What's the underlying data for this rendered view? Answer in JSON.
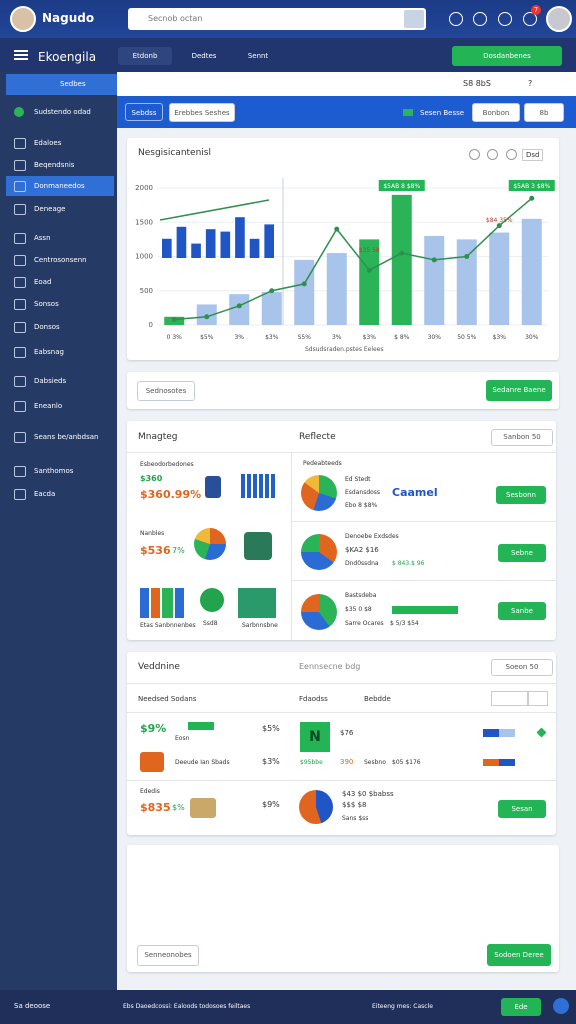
{
  "header": {
    "app_name": "Nagudo",
    "search_placeholder": "Secnob octan",
    "badge": "7"
  },
  "toolbar": {
    "title": "Ekoengila",
    "tabs": [
      "Etdonb",
      "Dedtes",
      "Sennt"
    ],
    "action": "Dosdanbenes"
  },
  "sidebar": {
    "top": "Sedbes",
    "section": "Sudstendo odad",
    "items": [
      "Edaloes",
      "Beqendsnis",
      "Donmaneedos",
      "Deneage",
      "Assn",
      "Centrosonsenn",
      "Eoad",
      "Sonsos",
      "Donsos",
      "Eabsnag",
      "Dabsieds",
      "Eneanlo",
      "Seans be/anbdsan",
      "Santhomos",
      "Eacda"
    ]
  },
  "subbar": {
    "search": "S8 8bS",
    "help": "?",
    "filters": [
      "Sebdss",
      "Erebbes Seshes"
    ],
    "status": "Sesen Besse",
    "buttons": [
      "Bonbon",
      "8b"
    ]
  },
  "main_chart": {
    "title": "Nesgisicantenisl",
    "more": "Dsd",
    "caption": "Sdsudsraden.pstes Eelees",
    "ylim": [
      0,
      2000
    ],
    "yticks": [
      0,
      500,
      1000,
      1500,
      2000
    ],
    "categories": [
      "0 3%",
      "$5%",
      "3%",
      "$3%",
      "S5%",
      "3%",
      "$3%",
      "$ 8%",
      "30%",
      "50 5%",
      "$3%",
      "30%"
    ],
    "bars": {
      "values": [
        120,
        300,
        450,
        480,
        950,
        1050,
        1250,
        1900,
        1300,
        1250,
        1350,
        1550
      ],
      "colors": [
        "#2bb457",
        "#a9c4ea",
        "#a9c4ea",
        "#a9c4ea",
        "#a9c4ea",
        "#a9c4ea",
        "#2bb457",
        "#2bb457",
        "#a9c4ea",
        "#a9c4ea",
        "#a9c4ea",
        "#a9c4ea"
      ]
    },
    "line": {
      "color": "#2f8f4f",
      "values": [
        80,
        120,
        280,
        500,
        600,
        1400,
        800,
        1050,
        950,
        1000,
        1450,
        1850
      ]
    },
    "inset": {
      "color": "#1f55c4",
      "ylim": [
        0,
        100
      ],
      "values": [
        40,
        65,
        30,
        60,
        55,
        85,
        40,
        70
      ]
    },
    "annotations": [
      "$5AB 8 $8%",
      "$5AB 3 $8%",
      "$35 58",
      "$84 35%"
    ]
  },
  "filter_card": {
    "left_button": "Sednosotes",
    "right_button": "Sedanre Baene"
  },
  "summary_card": {
    "left_title": "Mnagteg",
    "right_title": "Reflecte",
    "select": "Sanbon 50",
    "left": [
      {
        "label": "Esbeodorbedones",
        "value": "$360",
        "big": "$360.99%"
      },
      {
        "label": "Nanbles",
        "value": "$536",
        "pct": "7%"
      },
      {
        "labels": [
          "Etas Sanbnnenbes",
          "Ssd8",
          "Sarbnnsbne"
        ]
      }
    ],
    "right": [
      {
        "title": "Pedeabteeds",
        "lines": [
          "Ed Stedt",
          "Esdansdoss",
          "Ebo 8 $8%"
        ],
        "highlight": "Caamel",
        "button": "Sesbonn"
      },
      {
        "lines": [
          "Denoebe Exdsdes",
          "$KA2 $16",
          "Dnd0ssdna",
          "$ 843.$ 96"
        ],
        "button": "Sebne"
      },
      {
        "lines": [
          "Bastsdeba",
          "$35 0 $8",
          "Sarre Ocares",
          "$ 5/3 $54"
        ],
        "button": "Sanbe"
      }
    ]
  },
  "detail_card": {
    "title": "Veddnine",
    "subtitle": "Eennsecne bdg",
    "select": "Soeon 50",
    "columns": [
      "Needsed Sodans",
      "Fdaodss",
      "Bebdde"
    ],
    "rows": [
      [
        "$9%",
        "Eosn",
        "$5%",
        "N",
        "$76"
      ],
      [
        "Deeude Ian Sbads",
        "$3%",
        "$95bbe",
        "390",
        "Sesbno",
        "$05 $176"
      ],
      [
        "Ededis",
        "$835",
        "$%",
        "$9%",
        "$43 $0 $babss",
        "$$$ $8",
        "Sans $ss",
        "Sesan"
      ]
    ]
  },
  "bottom_card": {
    "left_button": "Senneonobes",
    "right_button": "Sodoen Deree"
  },
  "footer": {
    "left": "Sa deoose",
    "status": "Ebs Daoedcossi: Ealoods todosoes feiltaes",
    "info": "Eiteeng mes: Cascle",
    "button": "Ede"
  }
}
